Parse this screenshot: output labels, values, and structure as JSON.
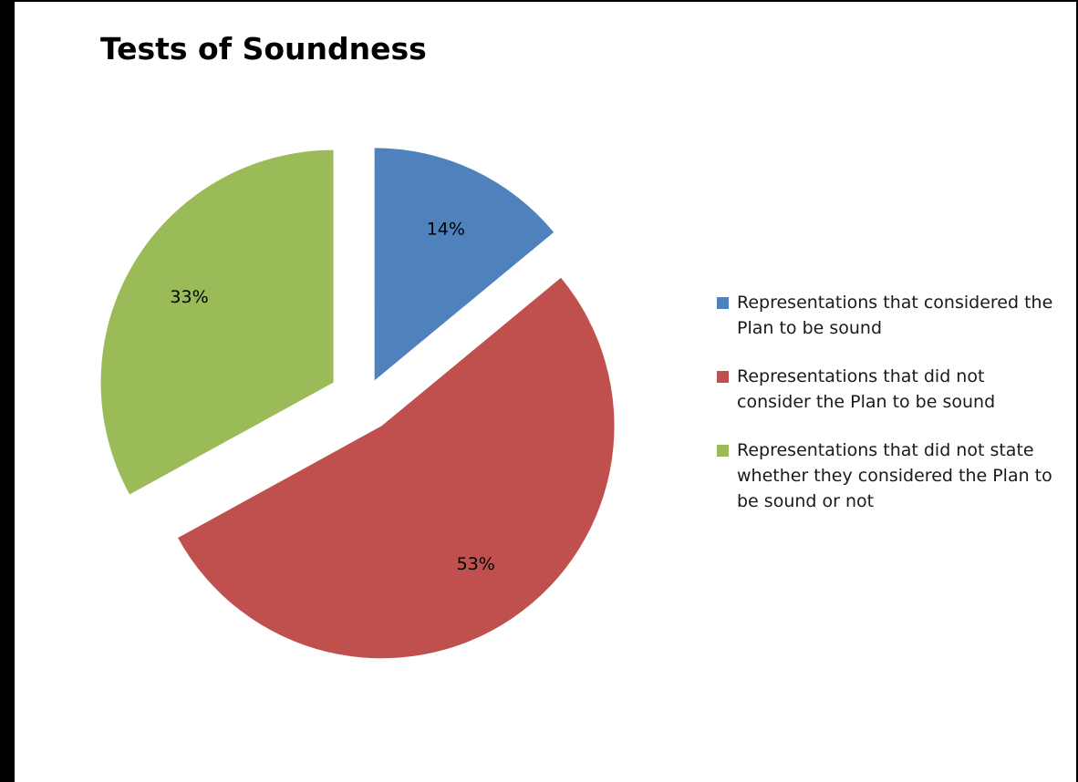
{
  "chart_data": {
    "type": "pie",
    "title": "Tests of Soundness",
    "categories": [
      "Representations that considered the Plan to be sound",
      "Representations that did not consider the Plan to be sound",
      "Representations that did not state whether they considered the Plan to be sound or not"
    ],
    "values": [
      14,
      53,
      33
    ],
    "data_labels": [
      "14%",
      "53%",
      "33%"
    ],
    "colors": [
      "#4f81bd",
      "#c0504d",
      "#9bbb59"
    ],
    "exploded": true,
    "legend_position": "right"
  }
}
